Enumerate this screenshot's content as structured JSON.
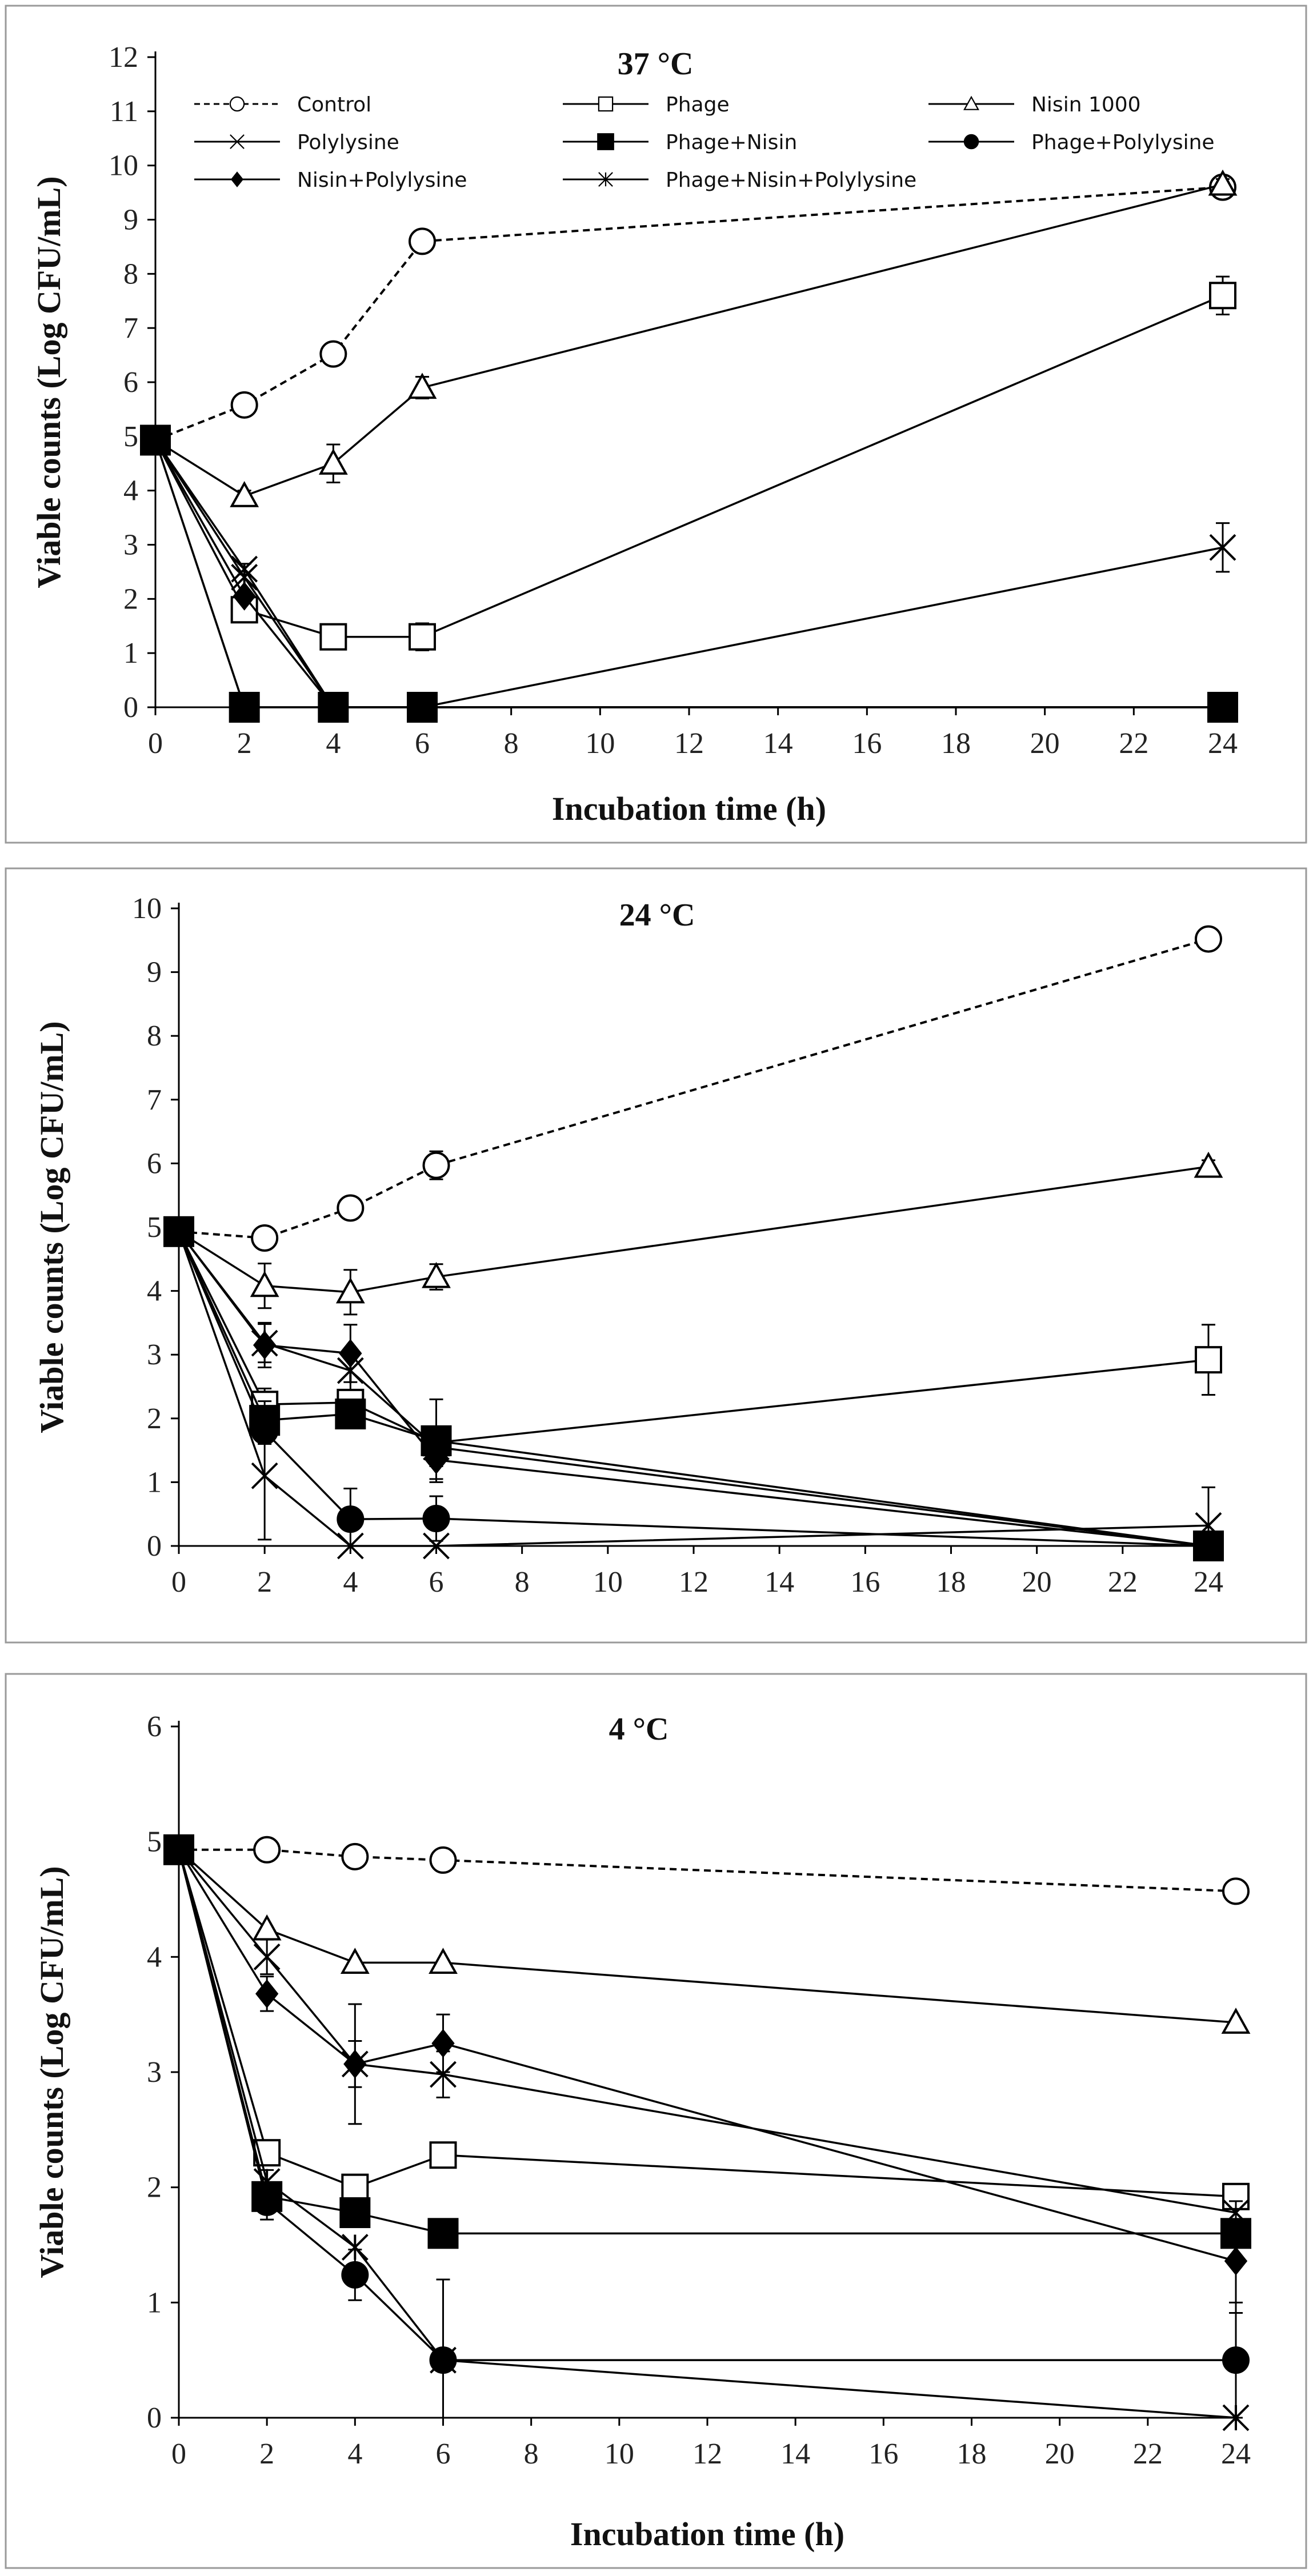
{
  "chart_data": [
    {
      "type": "line",
      "title": "37 °C",
      "xlabel": "Incubation time (h)",
      "ylabel": "Viable counts (Log CFU/mL)",
      "xlim": [
        0,
        24
      ],
      "ylim": [
        0,
        12
      ],
      "xticks": [
        0,
        2,
        4,
        6,
        8,
        10,
        12,
        14,
        16,
        18,
        20,
        22,
        24
      ],
      "yticks": [
        0,
        1,
        2,
        3,
        4,
        5,
        6,
        7,
        8,
        9,
        10,
        11,
        12
      ],
      "legend_position": "top",
      "series": [
        {
          "name": "Control",
          "marker": "circle-open",
          "dashed": true,
          "x": [
            0,
            2,
            4,
            6,
            24
          ],
          "y": [
            4.93,
            5.58,
            6.52,
            8.6,
            9.6
          ],
          "err": [
            0,
            0.12,
            0.12,
            0.12,
            0.1
          ]
        },
        {
          "name": "Phage",
          "marker": "square-open",
          "dashed": false,
          "x": [
            0,
            2,
            4,
            6,
            24
          ],
          "y": [
            4.93,
            1.8,
            1.3,
            1.3,
            7.6
          ],
          "err": [
            0,
            0.2,
            0.2,
            0.25,
            0.35
          ]
        },
        {
          "name": "Nisin 1000",
          "marker": "triangle-open",
          "dashed": false,
          "x": [
            0,
            2,
            4,
            6,
            24
          ],
          "y": [
            4.93,
            3.9,
            4.5,
            5.9,
            9.65
          ],
          "err": [
            0,
            0.1,
            0.35,
            0.2,
            0.1
          ]
        },
        {
          "name": "Polylysine",
          "marker": "x",
          "dashed": false,
          "x": [
            0,
            2,
            4,
            6,
            24
          ],
          "y": [
            4.93,
            2.55,
            0,
            0,
            2.95
          ],
          "err": [
            0,
            0.1,
            0,
            0,
            0.45
          ]
        },
        {
          "name": "Phage+Nisin",
          "marker": "square-filled",
          "dashed": false,
          "x": [
            0,
            2,
            4,
            6,
            24
          ],
          "y": [
            4.93,
            0,
            0,
            0,
            0
          ],
          "err": [
            0,
            0,
            0,
            0,
            0
          ]
        },
        {
          "name": "Phage+Polylysine",
          "marker": "circle-filled",
          "dashed": false,
          "x": [
            0,
            2,
            4,
            6,
            24
          ],
          "y": [
            4.93,
            0,
            0,
            0,
            0
          ],
          "err": [
            0,
            0,
            0,
            0,
            0
          ]
        },
        {
          "name": "Nisin+Polylysine",
          "marker": "diamond-filled",
          "dashed": false,
          "x": [
            0,
            2,
            4,
            6,
            24
          ],
          "y": [
            4.93,
            2.05,
            0,
            0,
            0
          ],
          "err": [
            0,
            0,
            0,
            0,
            0
          ]
        },
        {
          "name": "Phage+Nisin+Polylysine",
          "marker": "asterisk",
          "dashed": false,
          "x": [
            0,
            2,
            4,
            6,
            24
          ],
          "y": [
            4.93,
            2.4,
            0,
            0,
            0
          ],
          "err": [
            0,
            0,
            0,
            0,
            0
          ]
        }
      ]
    },
    {
      "type": "line",
      "title": "24 °C",
      "xlabel": "",
      "ylabel": "Viable counts (Log CFU/mL)",
      "xlim": [
        0,
        24
      ],
      "ylim": [
        0,
        10
      ],
      "xticks": [
        0,
        2,
        4,
        6,
        8,
        10,
        12,
        14,
        16,
        18,
        20,
        22,
        24
      ],
      "yticks": [
        0,
        1,
        2,
        3,
        4,
        5,
        6,
        7,
        8,
        9,
        10
      ],
      "series": [
        {
          "name": "Control",
          "marker": "circle-open",
          "dashed": true,
          "x": [
            0,
            2,
            4,
            6,
            24
          ],
          "y": [
            4.93,
            4.83,
            5.3,
            5.97,
            9.52
          ],
          "err": [
            0,
            0.12,
            0.12,
            0.22,
            0.08
          ]
        },
        {
          "name": "Phage",
          "marker": "square-open",
          "dashed": false,
          "x": [
            0,
            2,
            4,
            6,
            24
          ],
          "y": [
            4.93,
            2.22,
            2.25,
            1.62,
            2.92
          ],
          "err": [
            0,
            0.25,
            0.2,
            0.2,
            0.55
          ]
        },
        {
          "name": "Nisin 1000",
          "marker": "triangle-open",
          "dashed": false,
          "x": [
            0,
            2,
            4,
            6,
            24
          ],
          "y": [
            4.93,
            4.08,
            3.98,
            4.22,
            5.95
          ],
          "err": [
            0,
            0.35,
            0.35,
            0.2,
            0.1
          ]
        },
        {
          "name": "Polylysine",
          "marker": "x",
          "dashed": false,
          "x": [
            0,
            2,
            4,
            6,
            24
          ],
          "y": [
            4.93,
            1.1,
            0,
            0,
            0.32
          ],
          "err": [
            0,
            1.0,
            0,
            0,
            0.6
          ]
        },
        {
          "name": "Phage+Nisin",
          "marker": "square-filled",
          "dashed": false,
          "x": [
            0,
            2,
            4,
            6,
            24
          ],
          "y": [
            4.93,
            1.97,
            2.07,
            1.65,
            0
          ],
          "err": [
            0,
            0.3,
            0.2,
            0.65,
            0
          ]
        },
        {
          "name": "Phage+Polylysine",
          "marker": "circle-filled",
          "dashed": false,
          "x": [
            0,
            2,
            4,
            6,
            24
          ],
          "y": [
            4.93,
            1.8,
            0.42,
            0.43,
            0
          ],
          "err": [
            0,
            0.2,
            0.48,
            0.35,
            0
          ]
        },
        {
          "name": "Nisin+Polylysine",
          "marker": "diamond-filled",
          "dashed": false,
          "x": [
            0,
            2,
            4,
            6,
            24
          ],
          "y": [
            4.93,
            3.15,
            3.02,
            1.35,
            0
          ],
          "err": [
            0,
            0.35,
            0.45,
            0.3,
            0
          ]
        },
        {
          "name": "Phage+Nisin+Polylysine",
          "marker": "asterisk",
          "dashed": false,
          "x": [
            0,
            2,
            4,
            6,
            24
          ],
          "y": [
            4.93,
            3.18,
            2.75,
            1.55,
            0
          ],
          "err": [
            0,
            0.3,
            0.3,
            0.3,
            0
          ]
        }
      ]
    },
    {
      "type": "line",
      "title": "4 °C",
      "xlabel": "Incubation time (h)",
      "ylabel": "Viable counts (Log CFU/mL)",
      "xlim": [
        0,
        24
      ],
      "ylim": [
        0,
        6
      ],
      "xticks": [
        0,
        2,
        4,
        6,
        8,
        10,
        12,
        14,
        16,
        18,
        20,
        22,
        24
      ],
      "yticks": [
        0,
        1,
        2,
        3,
        4,
        5,
        6
      ],
      "series": [
        {
          "name": "Control",
          "marker": "circle-open",
          "dashed": true,
          "x": [
            0,
            2,
            4,
            6,
            24
          ],
          "y": [
            4.93,
            4.93,
            4.87,
            4.84,
            4.57
          ],
          "err": [
            0,
            0,
            0,
            0,
            0
          ]
        },
        {
          "name": "Phage",
          "marker": "square-open",
          "dashed": false,
          "x": [
            0,
            2,
            4,
            6,
            24
          ],
          "y": [
            4.93,
            2.3,
            2.0,
            2.28,
            1.92
          ],
          "err": [
            0,
            0,
            0,
            0,
            0
          ]
        },
        {
          "name": "Nisin 1000",
          "marker": "triangle-open",
          "dashed": false,
          "x": [
            0,
            2,
            4,
            6,
            24
          ],
          "y": [
            4.93,
            4.24,
            3.95,
            3.95,
            3.43
          ],
          "err": [
            0,
            0,
            0,
            0,
            0
          ]
        },
        {
          "name": "Polylysine",
          "marker": "x",
          "dashed": false,
          "x": [
            0,
            2,
            4,
            6,
            24
          ],
          "y": [
            4.93,
            4.0,
            3.07,
            2.98,
            1.78
          ],
          "err": [
            0,
            0.15,
            0.52,
            0.2,
            0.1
          ]
        },
        {
          "name": "Phage+Nisin",
          "marker": "square-filled",
          "dashed": false,
          "x": [
            0,
            2,
            4,
            6,
            24
          ],
          "y": [
            4.93,
            1.92,
            1.78,
            1.6,
            1.6
          ],
          "err": [
            0,
            0.12,
            0,
            0,
            0
          ]
        },
        {
          "name": "Phage+Polylysine",
          "marker": "circle-filled",
          "dashed": false,
          "x": [
            0,
            2,
            4,
            6,
            24
          ],
          "y": [
            4.93,
            1.87,
            1.24,
            0.5,
            0.5
          ],
          "err": [
            0,
            0.15,
            0.22,
            0.7,
            0.5
          ]
        },
        {
          "name": "Nisin+Polylysine",
          "marker": "diamond-filled",
          "dashed": false,
          "x": [
            0,
            2,
            4,
            6,
            24
          ],
          "y": [
            4.93,
            3.68,
            3.07,
            3.25,
            1.36
          ],
          "err": [
            0,
            0.15,
            0.2,
            0.25,
            0.45
          ]
        },
        {
          "name": "Phage+Nisin+Polylysine",
          "marker": "asterisk",
          "dashed": false,
          "x": [
            0,
            2,
            4,
            6,
            24
          ],
          "y": [
            4.93,
            2.05,
            1.48,
            0.5,
            0
          ],
          "err": [
            0,
            0.1,
            0,
            0,
            0
          ]
        }
      ]
    }
  ]
}
